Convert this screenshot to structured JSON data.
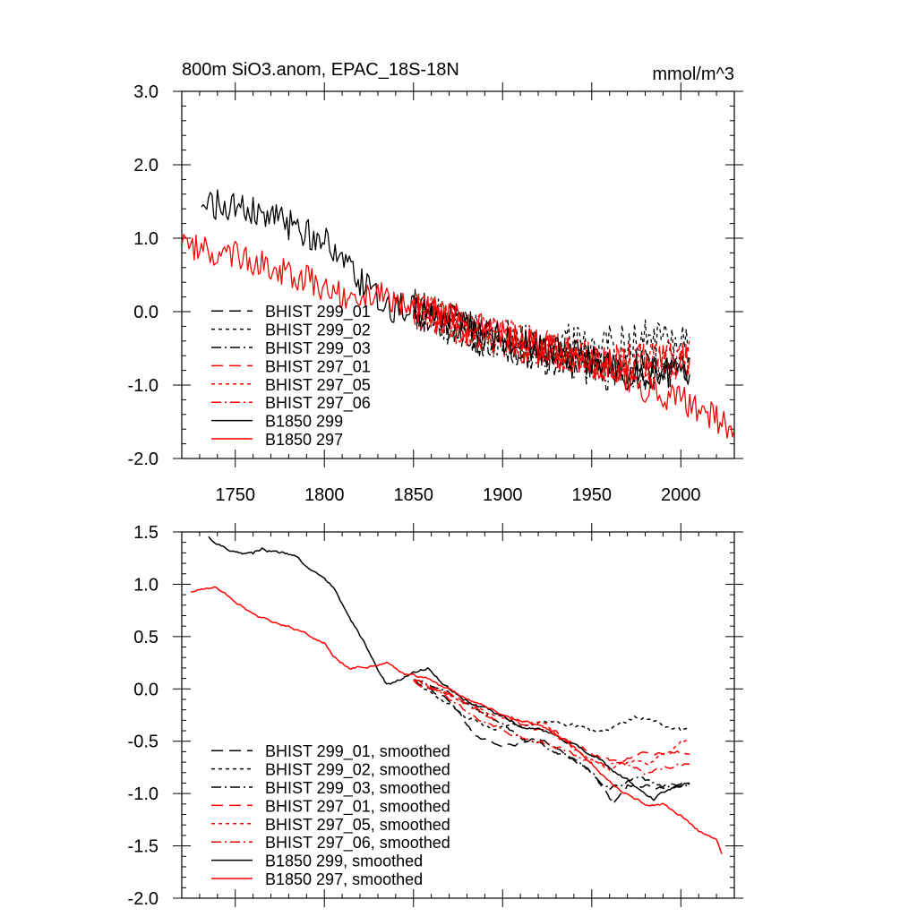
{
  "title_left": "800m SiO3.anom, EPAC_18S-18N",
  "title_right": "mmol/m^3",
  "colors": {
    "black": "#000000",
    "red": "#ff0000"
  },
  "chart_data": [
    {
      "type": "line",
      "name": "annual",
      "xlim": [
        1720,
        2030
      ],
      "ylim": [
        -2.0,
        3.0
      ],
      "x_ticks": [
        1750,
        1800,
        1850,
        1900,
        1950,
        2000
      ],
      "x_tick_labels": [
        "1750",
        "1800",
        "1850",
        "1900",
        "1950",
        "2000"
      ],
      "y_ticks": [
        3.0,
        2.0,
        1.0,
        0.0,
        -1.0,
        -2.0
      ],
      "y_tick_labels": [
        "3.0",
        "2.0",
        "1.0",
        "0.0",
        "-1.0",
        "-2.0"
      ],
      "legend_position": "bottom-left",
      "series": [
        {
          "name": "BHIST 299_01",
          "color": "#000000",
          "dash": "long-dash",
          "start": 1850,
          "end": 2005,
          "noise": 0.28,
          "anchors": [
            [
              1850,
              0.05
            ],
            [
              1880,
              -0.25
            ],
            [
              1920,
              -0.55
            ],
            [
              1960,
              -0.75
            ],
            [
              2005,
              -0.75
            ]
          ]
        },
        {
          "name": "BHIST 299_02",
          "color": "#000000",
          "dash": "dot",
          "start": 1850,
          "end": 2005,
          "noise": 0.28,
          "anchors": [
            [
              1850,
              0.05
            ],
            [
              1880,
              -0.25
            ],
            [
              1920,
              -0.45
            ],
            [
              1960,
              -0.4
            ],
            [
              2005,
              -0.35
            ]
          ]
        },
        {
          "name": "BHIST 299_03",
          "color": "#000000",
          "dash": "dash-dot",
          "start": 1850,
          "end": 2005,
          "noise": 0.28,
          "anchors": [
            [
              1850,
              0.05
            ],
            [
              1880,
              -0.3
            ],
            [
              1920,
              -0.55
            ],
            [
              1960,
              -0.8
            ],
            [
              2005,
              -0.8
            ]
          ]
        },
        {
          "name": "BHIST 297_01",
          "color": "#ff0000",
          "dash": "long-dash",
          "start": 1850,
          "end": 2005,
          "noise": 0.26,
          "anchors": [
            [
              1850,
              0.05
            ],
            [
              1880,
              -0.25
            ],
            [
              1920,
              -0.5
            ],
            [
              1960,
              -0.7
            ],
            [
              2005,
              -0.65
            ]
          ]
        },
        {
          "name": "BHIST 297_05",
          "color": "#ff0000",
          "dash": "dot",
          "start": 1850,
          "end": 2005,
          "noise": 0.26,
          "anchors": [
            [
              1850,
              0.05
            ],
            [
              1880,
              -0.2
            ],
            [
              1920,
              -0.45
            ],
            [
              1960,
              -0.75
            ],
            [
              2005,
              -0.6
            ]
          ]
        },
        {
          "name": "BHIST 297_06",
          "color": "#ff0000",
          "dash": "dash-dot",
          "start": 1850,
          "end": 2005,
          "noise": 0.26,
          "anchors": [
            [
              1850,
              0.05
            ],
            [
              1880,
              -0.25
            ],
            [
              1920,
              -0.5
            ],
            [
              1960,
              -0.7
            ],
            [
              2005,
              -0.65
            ]
          ]
        },
        {
          "name": "B1850 299",
          "color": "#000000",
          "dash": "solid",
          "start": 1731,
          "end": 2005,
          "noise": 0.22,
          "anchors": [
            [
              1731,
              1.5
            ],
            [
              1760,
              1.35
            ],
            [
              1785,
              1.15
            ],
            [
              1800,
              0.95
            ],
            [
              1812,
              0.6
            ],
            [
              1820,
              0.4
            ],
            [
              1835,
              0.05
            ],
            [
              1860,
              0.0
            ],
            [
              1900,
              -0.4
            ],
            [
              1940,
              -0.6
            ],
            [
              1970,
              -0.85
            ],
            [
              2005,
              -0.8
            ]
          ]
        },
        {
          "name": "B1850 297",
          "color": "#ff0000",
          "dash": "solid",
          "start": 1720,
          "end": 2030,
          "noise": 0.2,
          "anchors": [
            [
              1720,
              0.95
            ],
            [
              1735,
              0.85
            ],
            [
              1760,
              0.7
            ],
            [
              1790,
              0.45
            ],
            [
              1810,
              0.2
            ],
            [
              1830,
              0.25
            ],
            [
              1850,
              0.1
            ],
            [
              1900,
              -0.3
            ],
            [
              1950,
              -0.7
            ],
            [
              1980,
              -1.05
            ],
            [
              2000,
              -1.2
            ],
            [
              2030,
              -1.6
            ]
          ]
        }
      ]
    },
    {
      "type": "line",
      "name": "smoothed",
      "xlim": [
        1720,
        2030
      ],
      "ylim": [
        -2.0,
        1.5
      ],
      "x_ticks": [
        1750,
        1800,
        1850,
        1900,
        1950,
        2000
      ],
      "y_ticks": [
        1.5,
        1.0,
        0.5,
        0.0,
        -0.5,
        -1.0,
        -1.5,
        -2.0
      ],
      "y_tick_labels": [
        "1.5",
        "1.0",
        "0.5",
        "0.0",
        "-0.5",
        "-1.0",
        "-1.5",
        "-2.0"
      ],
      "legend_position": "bottom-left",
      "series": [
        {
          "name": "BHIST 299_01, smoothed",
          "color": "#000000",
          "dash": "long-dash",
          "start": 1850,
          "end": 2005,
          "noise": 0.03,
          "anchors": [
            [
              1850,
              0.08
            ],
            [
              1870,
              -0.1
            ],
            [
              1885,
              -0.45
            ],
            [
              1900,
              -0.55
            ],
            [
              1920,
              -0.5
            ],
            [
              1935,
              -0.6
            ],
            [
              1950,
              -0.8
            ],
            [
              1962,
              -1.1
            ],
            [
              1970,
              -0.9
            ],
            [
              1990,
              -0.95
            ],
            [
              2000,
              -0.9
            ]
          ]
        },
        {
          "name": "BHIST 299_02, smoothed",
          "color": "#000000",
          "dash": "dot",
          "start": 1850,
          "end": 2005,
          "noise": 0.03,
          "anchors": [
            [
              1850,
              0.08
            ],
            [
              1870,
              -0.15
            ],
            [
              1890,
              -0.35
            ],
            [
              1910,
              -0.35
            ],
            [
              1930,
              -0.3
            ],
            [
              1950,
              -0.4
            ],
            [
              1965,
              -0.35
            ],
            [
              1980,
              -0.25
            ],
            [
              2000,
              -0.42
            ]
          ]
        },
        {
          "name": "BHIST 299_03, smoothed",
          "color": "#000000",
          "dash": "dash-dot",
          "start": 1850,
          "end": 2005,
          "noise": 0.03,
          "anchors": [
            [
              1850,
              0.08
            ],
            [
              1870,
              -0.05
            ],
            [
              1890,
              -0.25
            ],
            [
              1910,
              -0.45
            ],
            [
              1930,
              -0.6
            ],
            [
              1950,
              -0.8
            ],
            [
              1960,
              -0.95
            ],
            [
              1975,
              -0.85
            ],
            [
              1990,
              -0.95
            ],
            [
              2000,
              -0.95
            ]
          ]
        },
        {
          "name": "BHIST 297_01, smoothed",
          "color": "#ff0000",
          "dash": "long-dash",
          "start": 1850,
          "end": 2005,
          "noise": 0.03,
          "anchors": [
            [
              1850,
              0.08
            ],
            [
              1870,
              -0.05
            ],
            [
              1890,
              -0.25
            ],
            [
              1910,
              -0.35
            ],
            [
              1930,
              -0.45
            ],
            [
              1950,
              -0.6
            ],
            [
              1965,
              -0.7
            ],
            [
              1980,
              -0.6
            ],
            [
              2000,
              -0.6
            ]
          ]
        },
        {
          "name": "BHIST 297_05, smoothed",
          "color": "#ff0000",
          "dash": "dot",
          "start": 1850,
          "end": 2005,
          "noise": 0.03,
          "anchors": [
            [
              1850,
              0.08
            ],
            [
              1870,
              -0.05
            ],
            [
              1890,
              -0.2
            ],
            [
              1905,
              -0.25
            ],
            [
              1925,
              -0.35
            ],
            [
              1940,
              -0.55
            ],
            [
              1960,
              -0.75
            ],
            [
              1985,
              -0.7
            ],
            [
              2000,
              -0.5
            ]
          ]
        },
        {
          "name": "BHIST 297_06, smoothed",
          "color": "#ff0000",
          "dash": "dash-dot",
          "start": 1850,
          "end": 2005,
          "noise": 0.03,
          "anchors": [
            [
              1850,
              0.08
            ],
            [
              1870,
              -0.1
            ],
            [
              1890,
              -0.3
            ],
            [
              1910,
              -0.45
            ],
            [
              1930,
              -0.55
            ],
            [
              1950,
              -0.7
            ],
            [
              1965,
              -0.7
            ],
            [
              1980,
              -0.8
            ],
            [
              2000,
              -0.7
            ]
          ]
        },
        {
          "name": "B1850 299, smoothed",
          "color": "#000000",
          "dash": "solid",
          "start": 1735,
          "end": 2005,
          "noise": 0.025,
          "anchors": [
            [
              1735,
              1.45
            ],
            [
              1745,
              1.35
            ],
            [
              1760,
              1.3
            ],
            [
              1765,
              1.35
            ],
            [
              1775,
              1.3
            ],
            [
              1785,
              1.28
            ],
            [
              1795,
              1.1
            ],
            [
              1805,
              0.95
            ],
            [
              1815,
              0.62
            ],
            [
              1825,
              0.35
            ],
            [
              1835,
              0.05
            ],
            [
              1845,
              0.1
            ],
            [
              1858,
              0.2
            ],
            [
              1870,
              0.0
            ],
            [
              1890,
              -0.2
            ],
            [
              1910,
              -0.35
            ],
            [
              1930,
              -0.45
            ],
            [
              1950,
              -0.62
            ],
            [
              1960,
              -0.75
            ],
            [
              1975,
              -0.95
            ],
            [
              1985,
              -1.05
            ],
            [
              1995,
              -0.95
            ],
            [
              2005,
              -0.9
            ]
          ]
        },
        {
          "name": "B1850 297, smoothed",
          "color": "#ff0000",
          "dash": "solid",
          "start": 1725,
          "end": 2023,
          "noise": 0.02,
          "anchors": [
            [
              1725,
              0.92
            ],
            [
              1738,
              0.98
            ],
            [
              1745,
              0.9
            ],
            [
              1760,
              0.72
            ],
            [
              1780,
              0.6
            ],
            [
              1800,
              0.45
            ],
            [
              1805,
              0.3
            ],
            [
              1815,
              0.2
            ],
            [
              1835,
              0.25
            ],
            [
              1845,
              0.15
            ],
            [
              1860,
              0.08
            ],
            [
              1880,
              -0.1
            ],
            [
              1900,
              -0.25
            ],
            [
              1920,
              -0.35
            ],
            [
              1940,
              -0.55
            ],
            [
              1955,
              -0.8
            ],
            [
              1970,
              -1.0
            ],
            [
              1980,
              -1.1
            ],
            [
              1990,
              -1.1
            ],
            [
              2000,
              -1.2
            ],
            [
              2010,
              -1.35
            ],
            [
              2020,
              -1.45
            ],
            [
              2023,
              -1.57
            ]
          ]
        }
      ]
    }
  ]
}
